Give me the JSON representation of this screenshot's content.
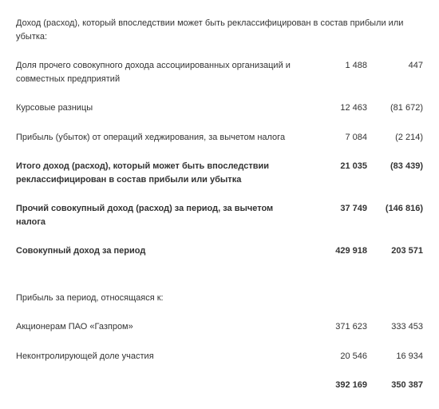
{
  "header1": "Доход (расход), который впоследствии может быть реклассифицирован в состав прибыли или убытка:",
  "rows1": [
    {
      "label": "Доля прочего совокупного дохода ассоциированных организаций и совместных предприятий",
      "v1": "1 488",
      "v2": "447"
    },
    {
      "label": "Курсовые разницы",
      "v1": "12 463",
      "v2": "(81 672)"
    },
    {
      "label": "Прибыль (убыток) от операций хеджирования, за вычетом налога",
      "v1": "7 084",
      "v2": "(2 214)"
    }
  ],
  "subtotal1": {
    "label": "Итого доход (расход), который может быть впоследствии реклассифицирован в состав прибыли или убытка",
    "v1": "21 035",
    "v2": "(83 439)"
  },
  "other_income": {
    "label": "Прочий совокупный доход (расход) за период, за вычетом налога",
    "v1": "37 749",
    "v2": "(146 816)"
  },
  "total_income": {
    "label": "Совокупный доход за период",
    "v1": "429 918",
    "v2": "203 571"
  },
  "header2": "Прибыль за период, относящаяся к:",
  "rows2": [
    {
      "label": "Акционерам ПАО «Газпром»",
      "v1": "371 623",
      "v2": "333 453"
    },
    {
      "label": "Неконтролирующей доле участия",
      "v1": "20 546",
      "v2": "16 934"
    }
  ],
  "total2": {
    "label": "",
    "v1": "392 169",
    "v2": "350 387"
  }
}
